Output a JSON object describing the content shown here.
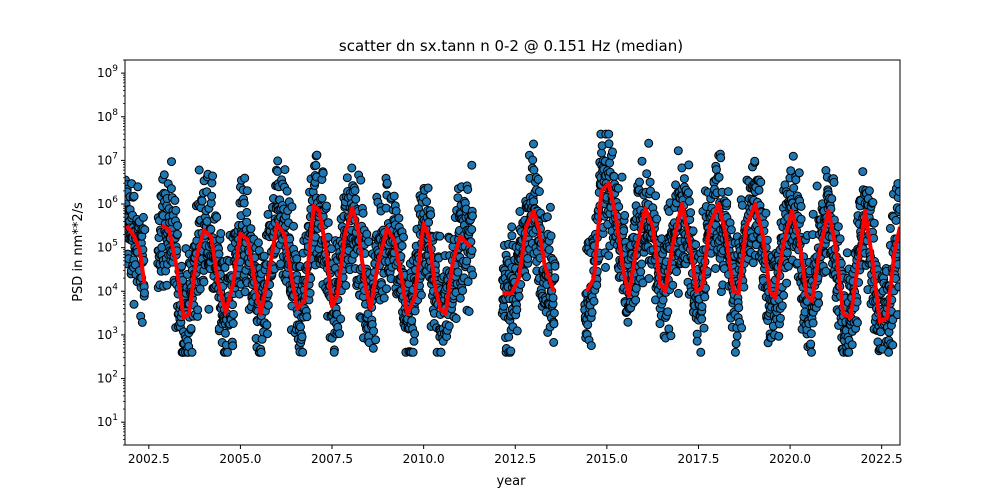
{
  "chart_data": {
    "type": "scatter",
    "title": "scatter dn sx.tann n 0-2 @ 0.151 Hz (median)",
    "xlabel": "year",
    "ylabel": "PSD in nm**2/s",
    "xlim": [
      2001.85,
      2023.0
    ],
    "ylim": [
      3,
      2000000000
    ],
    "yscale": "log",
    "grid": false,
    "xticks": [
      2002.5,
      2005.0,
      2007.5,
      2010.0,
      2012.5,
      2015.0,
      2017.5,
      2020.0,
      2022.5
    ],
    "xtick_labels": [
      "2002.5",
      "2005.0",
      "2007.5",
      "2010.0",
      "2012.5",
      "2015.0",
      "2017.5",
      "2020.0",
      "2022.5"
    ],
    "yticks": [
      10,
      100,
      1000,
      10000,
      100000,
      1000000,
      10000000,
      100000000,
      1000000000
    ],
    "ytick_exponents": [
      "1",
      "2",
      "3",
      "4",
      "5",
      "6",
      "7",
      "8",
      "9"
    ],
    "ytick_base": "10",
    "colors": {
      "points": "#1f77b4",
      "point_edge": "#000000",
      "median": "#ff0000"
    },
    "data_segments": [
      [
        2001.85,
        2002.4
      ],
      [
        2002.75,
        2011.35
      ],
      [
        2012.15,
        2013.6
      ],
      [
        2014.4,
        2023.0
      ]
    ],
    "series": [
      {
        "kind": "scatter",
        "note": "daily PSD values oscillate seasonally between about 1e3 and 3e6, with annual peaks near the start of each year",
        "peak_years": [
          2003.2,
          2004.1,
          2005.05,
          2006.05,
          2007.1,
          2008.05,
          2009.0,
          2010.05,
          2011.1,
          2013.0,
          2015.05,
          2016.05,
          2017.05,
          2018.1,
          2019.1,
          2020.05,
          2021.1,
          2022.05
        ],
        "max_value": 40000000,
        "min_value": 400
      },
      {
        "kind": "line",
        "points": [
          [
            2001.9,
            320000
          ],
          [
            2002.1,
            180000
          ],
          [
            2002.25,
            90000
          ],
          [
            2002.38,
            15000
          ],
          [
            2002.85,
            320000
          ],
          [
            2003.05,
            260000
          ],
          [
            2003.25,
            40000
          ],
          [
            2003.45,
            2500
          ],
          [
            2003.6,
            3000
          ],
          [
            2003.8,
            60000
          ],
          [
            2004.0,
            250000
          ],
          [
            2004.2,
            180000
          ],
          [
            2004.4,
            15000
          ],
          [
            2004.6,
            3200
          ],
          [
            2004.8,
            15000
          ],
          [
            2005.0,
            210000
          ],
          [
            2005.2,
            150000
          ],
          [
            2005.4,
            15000
          ],
          [
            2005.55,
            3000
          ],
          [
            2005.75,
            20000
          ],
          [
            2006.0,
            350000
          ],
          [
            2006.2,
            200000
          ],
          [
            2006.4,
            20000
          ],
          [
            2006.55,
            4000
          ],
          [
            2006.75,
            6000
          ],
          [
            2007.0,
            900000
          ],
          [
            2007.15,
            700000
          ],
          [
            2007.35,
            80000
          ],
          [
            2007.5,
            4500
          ],
          [
            2007.65,
            8000
          ],
          [
            2007.85,
            200000
          ],
          [
            2008.05,
            800000
          ],
          [
            2008.2,
            300000
          ],
          [
            2008.4,
            15000
          ],
          [
            2008.55,
            4000
          ],
          [
            2008.75,
            40000
          ],
          [
            2009.0,
            280000
          ],
          [
            2009.2,
            150000
          ],
          [
            2009.4,
            20000
          ],
          [
            2009.55,
            3000
          ],
          [
            2009.75,
            7000
          ],
          [
            2010.0,
            350000
          ],
          [
            2010.15,
            180000
          ],
          [
            2010.3,
            15000
          ],
          [
            2010.45,
            4000
          ],
          [
            2010.6,
            3000
          ],
          [
            2010.8,
            50000
          ],
          [
            2011.0,
            180000
          ],
          [
            2011.2,
            120000
          ],
          [
            2011.3,
            110000
          ],
          [
            2012.15,
            9000
          ],
          [
            2012.4,
            9000
          ],
          [
            2012.6,
            20000
          ],
          [
            2012.8,
            300000
          ],
          [
            2013.0,
            700000
          ],
          [
            2013.15,
            250000
          ],
          [
            2013.3,
            40000
          ],
          [
            2013.55,
            10000
          ],
          [
            2014.45,
            10000
          ],
          [
            2014.65,
            20000
          ],
          [
            2014.85,
            2000000
          ],
          [
            2015.05,
            3000000
          ],
          [
            2015.25,
            500000
          ],
          [
            2015.45,
            30000
          ],
          [
            2015.6,
            8000
          ],
          [
            2015.8,
            90000
          ],
          [
            2016.05,
            800000
          ],
          [
            2016.25,
            300000
          ],
          [
            2016.45,
            15000
          ],
          [
            2016.6,
            10000
          ],
          [
            2016.8,
            120000
          ],
          [
            2017.05,
            1000000
          ],
          [
            2017.25,
            150000
          ],
          [
            2017.45,
            10000
          ],
          [
            2017.6,
            12000
          ],
          [
            2017.8,
            300000
          ],
          [
            2018.05,
            1000000
          ],
          [
            2018.25,
            200000
          ],
          [
            2018.45,
            10000
          ],
          [
            2018.6,
            9000
          ],
          [
            2018.8,
            300000
          ],
          [
            2019.05,
            1000000
          ],
          [
            2019.25,
            200000
          ],
          [
            2019.45,
            10000
          ],
          [
            2019.6,
            7000
          ],
          [
            2019.8,
            100000
          ],
          [
            2020.05,
            700000
          ],
          [
            2020.25,
            150000
          ],
          [
            2020.45,
            8000
          ],
          [
            2020.6,
            6000
          ],
          [
            2020.8,
            80000
          ],
          [
            2021.05,
            700000
          ],
          [
            2021.25,
            100000
          ],
          [
            2021.45,
            3000
          ],
          [
            2021.65,
            2500
          ],
          [
            2021.85,
            40000
          ],
          [
            2022.05,
            700000
          ],
          [
            2022.25,
            50000
          ],
          [
            2022.45,
            2000
          ],
          [
            2022.65,
            2500
          ],
          [
            2022.85,
            80000
          ],
          [
            2023.0,
            300000
          ]
        ]
      }
    ]
  }
}
